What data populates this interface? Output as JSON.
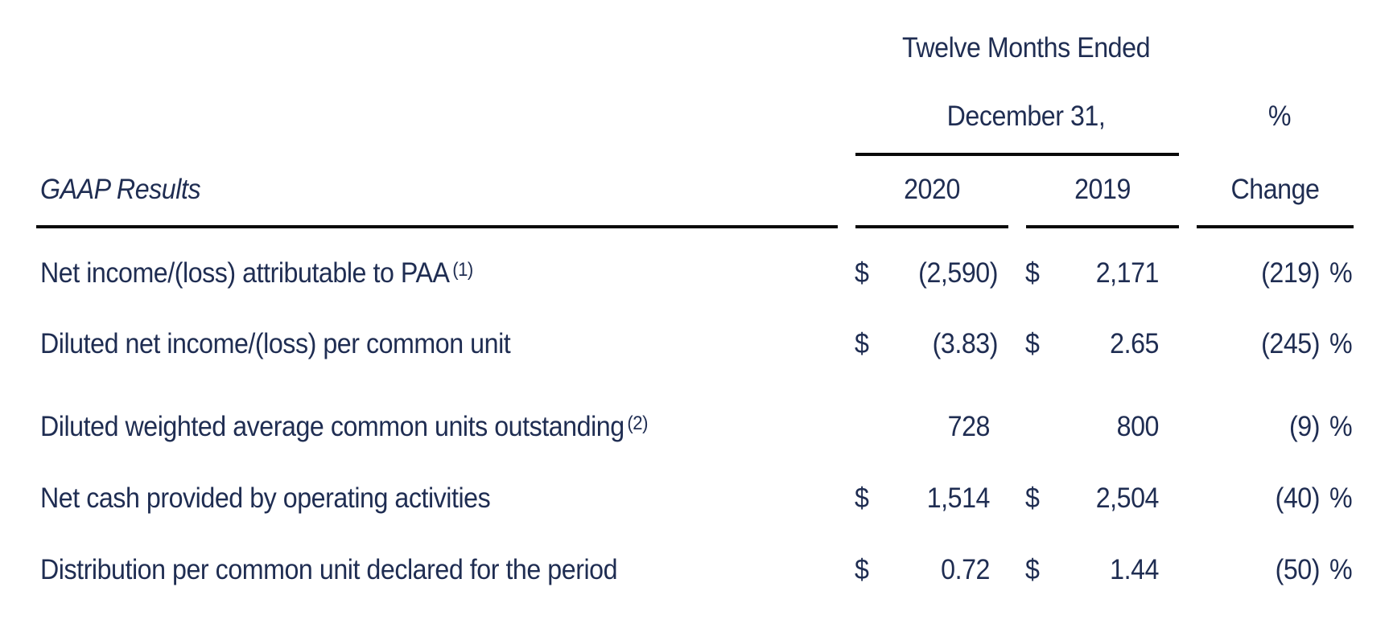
{
  "header": {
    "period_line1": "Twelve Months Ended",
    "period_line2": "December 31,",
    "pct_line1": "%",
    "section_title": "GAAP Results",
    "col_2020": "2020",
    "col_2019": "2019",
    "col_change": "Change"
  },
  "rows": [
    {
      "label": "Net income/(loss) attributable to PAA",
      "footnote": "(1)",
      "cur1": "$",
      "v2020": "(2,590)",
      "cur2": "$",
      "v2019": "2,171",
      "change": "(219)",
      "pct": "%"
    },
    {
      "label": "Diluted net income/(loss) per common unit",
      "footnote": "",
      "cur1": "$",
      "v2020": "(3.83)",
      "cur2": "$",
      "v2019": "2.65",
      "change": "(245)",
      "pct": "%"
    },
    {
      "label": "Diluted weighted average common units outstanding",
      "footnote": "(2)",
      "cur1": "",
      "v2020": "728",
      "cur2": "",
      "v2019": "800",
      "change": "(9)",
      "pct": "%"
    },
    {
      "label": "Net cash provided by operating activities",
      "footnote": "",
      "cur1": "$",
      "v2020": "1,514",
      "cur2": "$",
      "v2019": "2,504",
      "change": "(40)",
      "pct": "%"
    },
    {
      "label": "Distribution per common unit declared for the period",
      "footnote": "",
      "cur1": "$",
      "v2020": "0.72",
      "cur2": "$",
      "v2019": "1.44",
      "change": "(50)",
      "pct": "%"
    }
  ]
}
